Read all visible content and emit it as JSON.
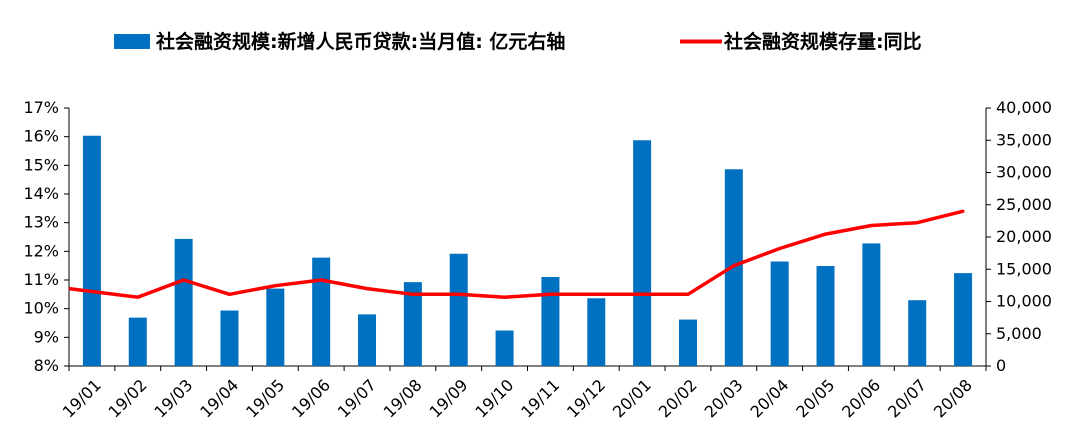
{
  "chart_data": {
    "type": "bar",
    "categories": [
      "19/01",
      "19/02",
      "19/03",
      "19/04",
      "19/05",
      "19/06",
      "19/07",
      "19/08",
      "19/09",
      "19/10",
      "19/11",
      "19/12",
      "20/01",
      "20/02",
      "20/03",
      "20/04",
      "20/05",
      "20/06",
      "20/07",
      "20/08"
    ],
    "series": [
      {
        "name": "社会融资规模:新增人民币贷款:当月值: 亿元右轴",
        "type": "bar",
        "axis": "right",
        "color": "#0070C0",
        "values": [
          35700,
          7500,
          19700,
          8600,
          12000,
          16800,
          8000,
          13000,
          17400,
          5500,
          13800,
          10500,
          35000,
          7200,
          30500,
          16200,
          15500,
          19000,
          10200,
          14400
        ]
      },
      {
        "name": "社会融资规模存量:同比",
        "type": "line",
        "axis": "left",
        "color": "#FF0000",
        "values": [
          10.6,
          10.4,
          11.0,
          10.5,
          10.8,
          11.0,
          10.7,
          10.5,
          10.5,
          10.4,
          10.5,
          10.5,
          10.5,
          10.5,
          11.5,
          12.1,
          12.6,
          12.9,
          13.0,
          13.4
        ]
      }
    ],
    "y_left": {
      "ylim": [
        8,
        17
      ],
      "ticks": [
        8,
        9,
        10,
        11,
        12,
        13,
        14,
        15,
        16,
        17
      ],
      "tick_labels": [
        "8%",
        "9%",
        "10%",
        "11%",
        "12%",
        "13%",
        "14%",
        "15%",
        "16%",
        "17%"
      ]
    },
    "y_right": {
      "ylim": [
        0,
        40000
      ],
      "ticks": [
        0,
        5000,
        10000,
        15000,
        20000,
        25000,
        30000,
        35000,
        40000
      ],
      "tick_labels": [
        "0",
        "5,000",
        "10,000",
        "15,000",
        "20,000",
        "25,000",
        "30,000",
        "35,000",
        "40,000"
      ]
    },
    "legend_placement": "top",
    "grid": false
  }
}
